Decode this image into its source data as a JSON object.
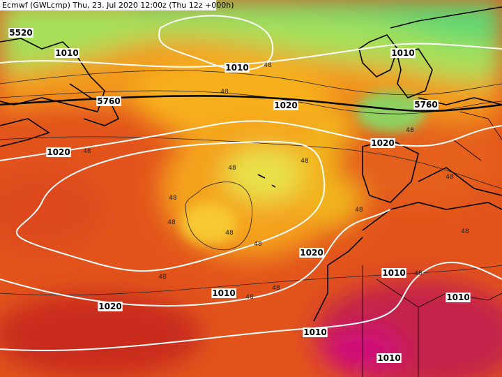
{
  "header": {
    "title": "Ecmwf (GWLcmp) Thu, 23. Jul 2020 12:00z (Thu 12z +000h)"
  },
  "isobar_labels": [
    "5520",
    "1010",
    "1010",
    "1010",
    "5760",
    "5760",
    "1020",
    "1020",
    "1020",
    "1020",
    "1010",
    "1010",
    "1020",
    "1010",
    "1010",
    "1010"
  ],
  "thickness_labels": [
    "48",
    "48",
    "48",
    "48",
    "48",
    "48",
    "48",
    "48",
    "48",
    "48",
    "48",
    "48",
    "48",
    "48",
    "48",
    "48",
    "48"
  ]
}
